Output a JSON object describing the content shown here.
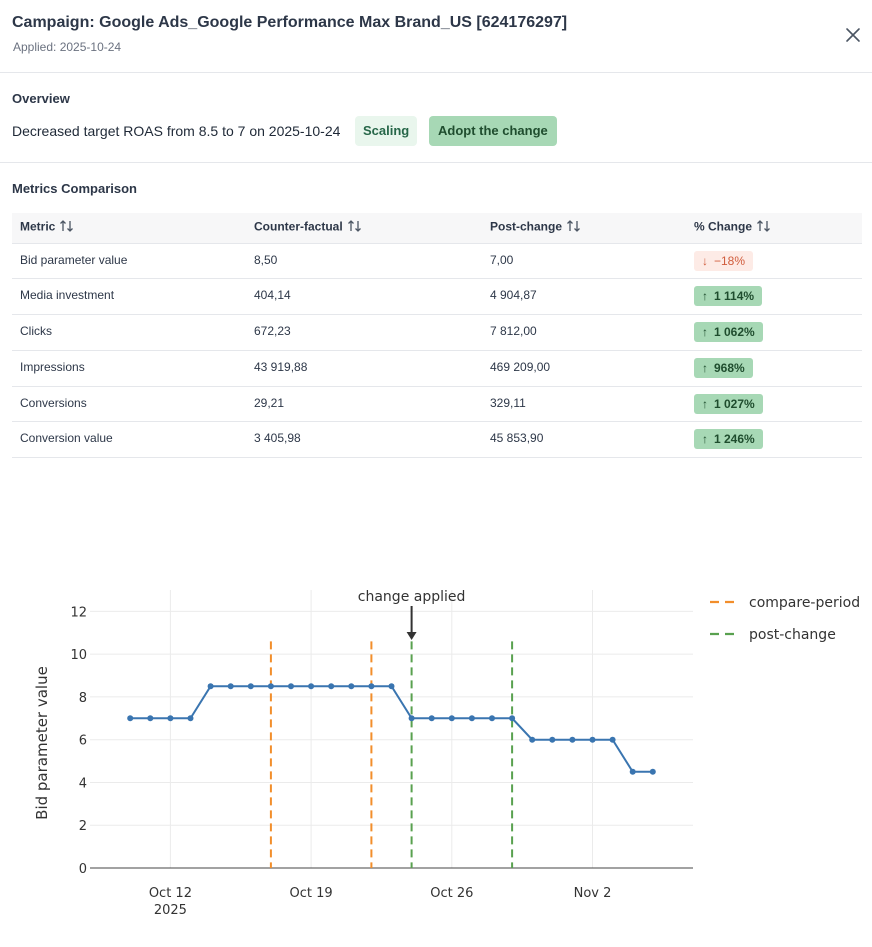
{
  "header": {
    "title": "Campaign: Google Ads_Google Performance Max Brand_US [624176297]",
    "applied": "Applied: 2025-10-24"
  },
  "overview": {
    "title": "Overview",
    "text": "Decreased target ROAS from 8.5 to 7 on 2025-10-24",
    "status_badge": "Scaling",
    "adopt_button": "Adopt the change"
  },
  "metrics": {
    "title": "Metrics Comparison",
    "columns": [
      "Metric",
      "Counter-factual",
      "Post-change",
      "% Change"
    ],
    "rows": [
      {
        "metric": "Bid parameter value",
        "counterfactual": "8,50",
        "post": "7,00",
        "change": "−18%",
        "direction": "down"
      },
      {
        "metric": "Media investment",
        "counterfactual": "404,14",
        "post": "4 904,87",
        "change": "1 114%",
        "direction": "up"
      },
      {
        "metric": "Clicks",
        "counterfactual": "672,23",
        "post": "7 812,00",
        "change": "1 062%",
        "direction": "up"
      },
      {
        "metric": "Impressions",
        "counterfactual": "43 919,88",
        "post": "469 209,00",
        "change": "968%",
        "direction": "up"
      },
      {
        "metric": "Conversions",
        "counterfactual": "29,21",
        "post": "329,11",
        "change": "1 027%",
        "direction": "up"
      },
      {
        "metric": "Conversion value",
        "counterfactual": "3 405,98",
        "post": "45 853,90",
        "change": "1 246%",
        "direction": "up"
      }
    ]
  },
  "colors": {
    "line": "#3a75b0",
    "compare": "#f28e2b",
    "post": "#59a14f",
    "chip_up_bg": "#a7d8b5",
    "chip_down_bg": "#fdebe6"
  },
  "chart_data": {
    "type": "line",
    "ylabel": "Bid parameter value",
    "ylim": [
      0,
      13
    ],
    "yticks": [
      0,
      2,
      4,
      6,
      8,
      10,
      12
    ],
    "xticks": [
      {
        "date": "2025-10-12",
        "label": "Oct 12",
        "sublabel": "2025"
      },
      {
        "date": "2025-10-19",
        "label": "Oct 19",
        "sublabel": ""
      },
      {
        "date": "2025-10-26",
        "label": "Oct 26",
        "sublabel": ""
      },
      {
        "date": "2025-11-02",
        "label": "Nov 2",
        "sublabel": ""
      }
    ],
    "xlim": [
      "2025-10-08",
      "2025-11-07"
    ],
    "grid": true,
    "legend_placement": "top-right",
    "series": [
      {
        "x": [
          "2025-10-10",
          "2025-10-11",
          "2025-10-12",
          "2025-10-13",
          "2025-10-14",
          "2025-10-15",
          "2025-10-16",
          "2025-10-17",
          "2025-10-18",
          "2025-10-19",
          "2025-10-20",
          "2025-10-21",
          "2025-10-22",
          "2025-10-23",
          "2025-10-24",
          "2025-10-25",
          "2025-10-26",
          "2025-10-27",
          "2025-10-28",
          "2025-10-29",
          "2025-10-30",
          "2025-10-31",
          "2025-11-01",
          "2025-11-02",
          "2025-11-03",
          "2025-11-04",
          "2025-11-05"
        ],
        "y": [
          7,
          7,
          7,
          7,
          8.5,
          8.5,
          8.5,
          8.5,
          8.5,
          8.5,
          8.5,
          8.5,
          8.5,
          8.5,
          7,
          7,
          7,
          7,
          7,
          7,
          6,
          6,
          6,
          6,
          6,
          4.5,
          4.5
        ]
      }
    ],
    "vlines": [
      {
        "date": "2025-10-17",
        "group": "compare-period"
      },
      {
        "date": "2025-10-22",
        "group": "compare-period"
      },
      {
        "date": "2025-10-24",
        "group": "post-change"
      },
      {
        "date": "2025-10-29",
        "group": "post-change"
      }
    ],
    "vline_top": 10.6,
    "legend": [
      "compare-period",
      "post-change"
    ],
    "annotation": {
      "text": "change applied",
      "date": "2025-10-24"
    }
  }
}
